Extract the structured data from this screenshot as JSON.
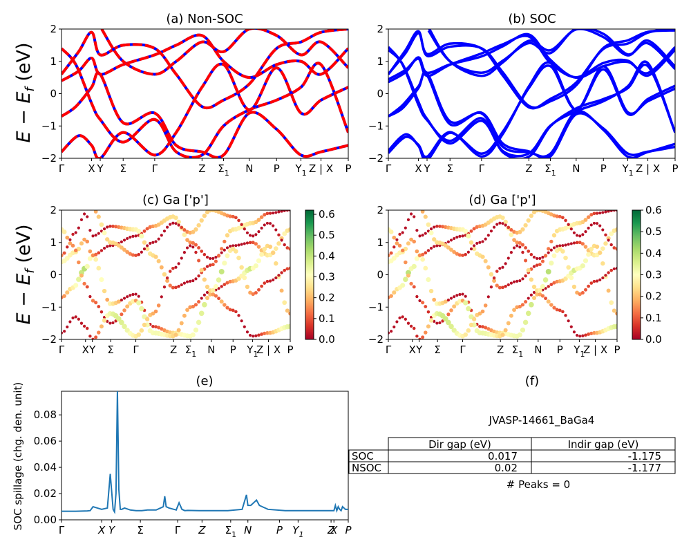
{
  "panel_titles": {
    "a": "(a) Non-SOC",
    "b": "(b) SOC",
    "c": "(c)  Ga ['p']",
    "d": "(d) Ga ['p']",
    "e": "(e)",
    "f": "(f)"
  },
  "ylabel_band": "E − E_f (eV)",
  "ylabel_band_parts": {
    "E": "E",
    "minus": " − ",
    "Ef_main": "E",
    "Ef_sub": "f",
    "unit": " (eV)"
  },
  "ylabel_spillage": "SOC spillage (chg. den. unit)",
  "kpath": {
    "labels": [
      "Γ",
      "X",
      "Y",
      "Σ",
      "Γ",
      "Z",
      "Σ1",
      "N",
      "P",
      "Y1",
      "Z | X",
      "P"
    ],
    "positions": [
      0,
      0.105,
      0.135,
      0.215,
      0.325,
      0.49,
      0.565,
      0.655,
      0.75,
      0.835,
      0.905,
      1.0
    ]
  },
  "band_yticks": [
    "2",
    "1",
    "0",
    "−1",
    "−2"
  ],
  "band_ylim": [
    -2,
    2
  ],
  "colorbar_c": {
    "ticks": [
      "0.0",
      "0.1",
      "0.2",
      "0.3",
      "0.4",
      "0.5",
      "0.6"
    ],
    "max": 0.62
  },
  "colorbar_d": {
    "ticks": [
      "0.0",
      "0.1",
      "0.2",
      "0.3",
      "0.4",
      "0.5",
      "0.6"
    ],
    "max": 0.6
  },
  "chart_data": [
    {
      "type": "line",
      "title": "(a) Non-SOC",
      "ylabel": "E − E_f (eV)",
      "ylim": [
        -2,
        2
      ],
      "series": [
        {
          "name": "",
          "color": "#0000ff",
          "values": "bands"
        },
        {
          "name": "",
          "color": "#ff0000",
          "dash": true,
          "values": "bands"
        }
      ],
      "bands": [
        [
          [
            0,
            -0.7
          ],
          [
            0.05,
            -0.4
          ],
          [
            0.105,
            0.2
          ],
          [
            0.135,
            0.6
          ],
          [
            0.215,
            -0.9
          ],
          [
            0.325,
            -0.6
          ],
          [
            0.4,
            -1.6
          ],
          [
            0.49,
            -1.8
          ],
          [
            0.565,
            -1.9
          ],
          [
            0.655,
            -0.6
          ],
          [
            0.75,
            -1.1
          ],
          [
            0.835,
            -1.9
          ],
          [
            0.905,
            -1.8
          ],
          [
            1.0,
            -1.6
          ]
        ],
        [
          [
            0,
            0.4
          ],
          [
            0.06,
            0.7
          ],
          [
            0.105,
            1.1
          ],
          [
            0.135,
            0.6
          ],
          [
            0.215,
            0.9
          ],
          [
            0.325,
            1.2
          ],
          [
            0.4,
            1.5
          ],
          [
            0.49,
            1.8
          ],
          [
            0.565,
            1.0
          ],
          [
            0.655,
            0.5
          ],
          [
            0.75,
            0.9
          ],
          [
            0.835,
            1.0
          ],
          [
            0.905,
            0.6
          ],
          [
            1.0,
            1.4
          ]
        ],
        [
          [
            0,
            1.4
          ],
          [
            0.05,
            0.9
          ],
          [
            0.105,
            -0.3
          ],
          [
            0.135,
            -0.8
          ],
          [
            0.215,
            -1.5
          ],
          [
            0.325,
            -0.8
          ],
          [
            0.4,
            -1.8
          ],
          [
            0.49,
            -1.9
          ],
          [
            0.565,
            -1.0
          ],
          [
            0.655,
            -0.5
          ],
          [
            0.75,
            -0.2
          ],
          [
            0.835,
            0.2
          ],
          [
            0.905,
            0.9
          ],
          [
            1.0,
            -1.2
          ]
        ],
        [
          [
            0,
            0.6
          ],
          [
            0.06,
            1.3
          ],
          [
            0.105,
            1.9
          ],
          [
            0.135,
            1.2
          ],
          [
            0.215,
            1.5
          ],
          [
            0.325,
            1.4
          ],
          [
            0.4,
            0.6
          ],
          [
            0.49,
            -0.4
          ],
          [
            0.565,
            -0.2
          ],
          [
            0.655,
            0.3
          ],
          [
            0.75,
            1.4
          ],
          [
            0.835,
            1.6
          ],
          [
            0.905,
            1.9
          ],
          [
            1.0,
            2.0
          ]
        ],
        [
          [
            0,
            -1.8
          ],
          [
            0.06,
            -1.3
          ],
          [
            0.105,
            -1.6
          ],
          [
            0.135,
            -2.0
          ],
          [
            0.215,
            -1.2
          ],
          [
            0.325,
            -1.9
          ],
          [
            0.4,
            -1.2
          ],
          [
            0.49,
            0.2
          ],
          [
            0.565,
            0.9
          ],
          [
            0.655,
            -0.5
          ],
          [
            0.75,
            0.8
          ],
          [
            0.835,
            -0.6
          ],
          [
            0.905,
            -0.2
          ],
          [
            1.0,
            0.2
          ]
        ],
        [
          [
            0.14,
            2.0
          ],
          [
            0.215,
            1.0
          ],
          [
            0.325,
            0.6
          ],
          [
            0.4,
            1.0
          ],
          [
            0.49,
            1.6
          ],
          [
            0.565,
            1.3
          ],
          [
            0.655,
            2.0
          ],
          [
            0.75,
            1.8
          ],
          [
            0.835,
            1.2
          ],
          [
            0.905,
            1.6
          ],
          [
            1.0,
            0.8
          ]
        ]
      ]
    },
    {
      "type": "line",
      "title": "(b) SOC",
      "ylim": [
        -2,
        2
      ],
      "series": [
        {
          "name": "",
          "color": "#0000ff",
          "values": "bands"
        }
      ],
      "bands": "same as (a), with small spin-orbit splitting"
    },
    {
      "type": "scatter",
      "title": "(c)  Ga ['p']",
      "ylabel": "E − E_f (eV)",
      "ylim": [
        -2,
        2
      ],
      "colorbar_range": [
        0,
        0.62
      ],
      "points": "band points colored by Ga p projection (0 to 0.62)"
    },
    {
      "type": "scatter",
      "title": "(d) Ga ['p']",
      "ylim": [
        -2,
        2
      ],
      "colorbar_range": [
        0,
        0.6
      ],
      "points": "band points colored by Ga p projection (0 to 0.6)"
    },
    {
      "type": "line",
      "title": "(e)",
      "ylabel": "SOC spillage (chg. den. unit)",
      "ylim": [
        0,
        0.098
      ],
      "yticks": [
        "0.00",
        "0.02",
        "0.04",
        "0.06",
        "0.08"
      ],
      "xticks": [
        "Γ",
        "X",
        "Y",
        "Σ",
        "Γ",
        "Z",
        "Σ1",
        "N",
        "P",
        "Y1",
        "Z",
        "X",
        "P"
      ],
      "series": [
        {
          "name": "",
          "color": "#1f77b4"
        }
      ],
      "x": [
        0.0,
        0.05,
        0.09,
        0.1,
        0.11,
        0.125,
        0.14,
        0.16,
        0.17,
        0.18,
        0.185,
        0.19,
        0.195,
        0.2,
        0.205,
        0.21,
        0.22,
        0.24,
        0.26,
        0.28,
        0.3,
        0.33,
        0.355,
        0.36,
        0.365,
        0.375,
        0.4,
        0.41,
        0.42,
        0.43,
        0.44,
        0.48,
        0.53,
        0.58,
        0.63,
        0.645,
        0.65,
        0.66,
        0.67,
        0.68,
        0.69,
        0.72,
        0.78,
        0.84,
        0.9,
        0.94,
        0.95,
        0.955,
        0.96,
        0.965,
        0.97,
        0.975,
        0.98,
        0.99,
        1.0
      ],
      "values": [
        0.0065,
        0.0065,
        0.0068,
        0.007,
        0.01,
        0.009,
        0.008,
        0.009,
        0.035,
        0.008,
        0.006,
        0.02,
        0.098,
        0.023,
        0.008,
        0.008,
        0.009,
        0.0075,
        0.007,
        0.007,
        0.0075,
        0.0075,
        0.01,
        0.018,
        0.01,
        0.009,
        0.0075,
        0.013,
        0.008,
        0.007,
        0.0072,
        0.007,
        0.007,
        0.007,
        0.008,
        0.019,
        0.011,
        0.011,
        0.013,
        0.015,
        0.011,
        0.008,
        0.007,
        0.007,
        0.007,
        0.007,
        0.007,
        0.011,
        0.007,
        0.01,
        0.008,
        0.007,
        0.01,
        0.008,
        0.008
      ]
    },
    {
      "type": "table",
      "title": "(f)",
      "caption": "JVASP-14661_BaGa4",
      "columns": [
        "",
        "Dir gap (eV)",
        "Indir gap (eV)"
      ],
      "rows": [
        [
          "SOC",
          "0.017",
          "-1.175"
        ],
        [
          "NSOC",
          "0.02",
          "-1.177"
        ]
      ],
      "footer": "# Peaks = 0"
    }
  ]
}
